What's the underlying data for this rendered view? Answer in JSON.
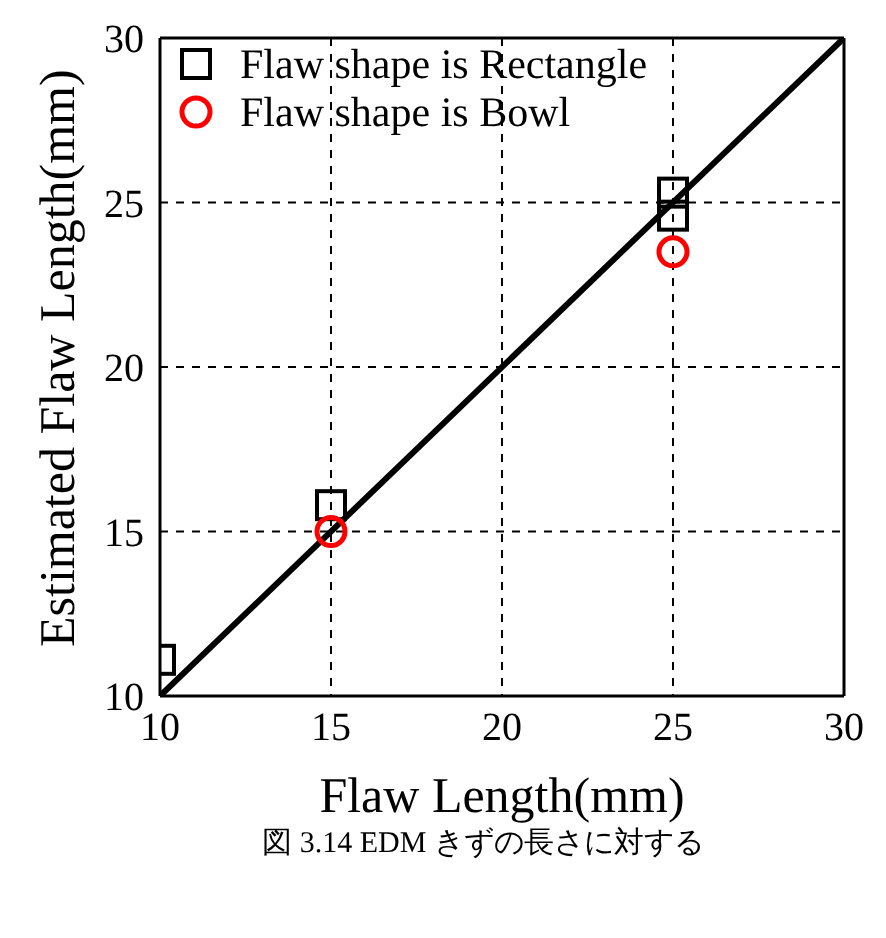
{
  "chart_data": {
    "type": "scatter",
    "xlabel": "Flaw Length(mm)",
    "ylabel": "Estimated Flaw Length(mm)",
    "annotations": [
      "図 3.14 EDM きずの長さに対する"
    ],
    "series": [
      {
        "name": "Flaw shape is Rectangle",
        "color": "#000000",
        "marker": "square",
        "x": [
          10,
          15,
          25,
          25
        ],
        "values": [
          11.1,
          15.8,
          25.3,
          24.6
        ]
      },
      {
        "name": "Flaw shape is Bowl",
        "color": "#ff0000",
        "marker": "circle",
        "x": [
          15,
          25
        ],
        "values": [
          15.0,
          23.5
        ]
      },
      {
        "type": "line",
        "color": "#000000",
        "marker": "none",
        "line_style": "solid",
        "x": [
          10,
          30
        ],
        "values": [
          10,
          30
        ]
      }
    ],
    "xlim": [
      10,
      30
    ],
    "ylim": [
      10,
      30
    ],
    "xticks": [
      10,
      15,
      20,
      25,
      30
    ],
    "yticks": [
      10,
      15,
      20,
      25,
      30
    ],
    "grid": true,
    "legend": "top left"
  }
}
